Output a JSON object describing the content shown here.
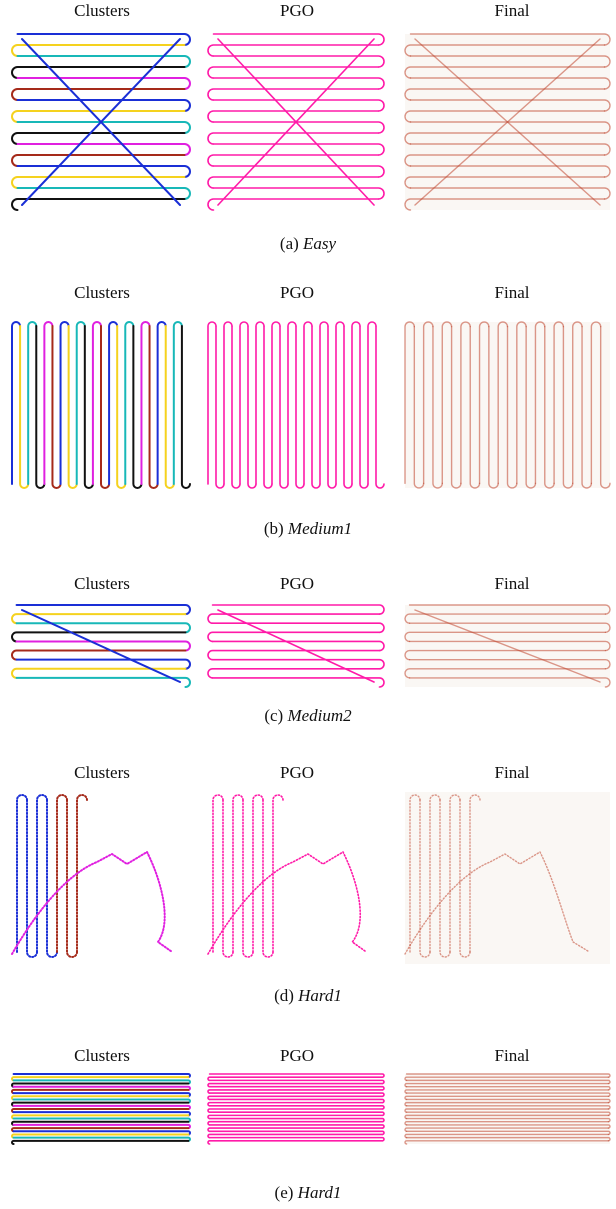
{
  "rows": [
    {
      "headers": [
        "Clusters",
        "PGO",
        "Final"
      ],
      "caption": {
        "label": "(a)",
        "name": "Easy"
      }
    },
    {
      "headers": [
        "Clusters",
        "PGO",
        "Final"
      ],
      "caption": {
        "label": "(b)",
        "name": "Medium1"
      }
    },
    {
      "headers": [
        "Clusters",
        "PGO",
        "Final"
      ],
      "caption": {
        "label": "(c)",
        "name": "Medium2"
      }
    },
    {
      "headers": [
        "Clusters",
        "PGO",
        "Final"
      ],
      "caption": {
        "label": "(d)",
        "name": "Hard1"
      }
    },
    {
      "headers": [
        "Clusters",
        "PGO",
        "Final"
      ],
      "caption": {
        "label": "(e)",
        "name": "Hard1"
      }
    }
  ]
}
